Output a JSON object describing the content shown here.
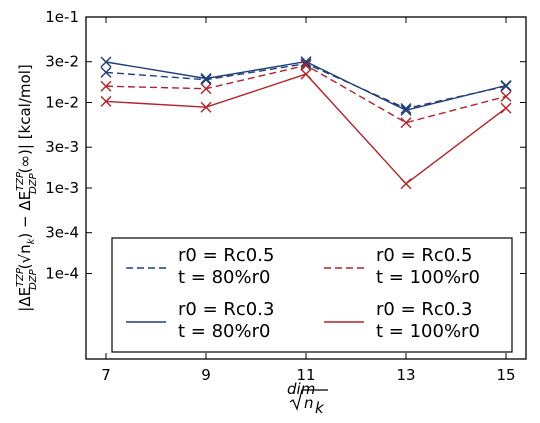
{
  "chart_data": {
    "type": "line",
    "xlabel": {
      "dim": "dim",
      "radicand": "n",
      "sub": "k"
    },
    "ylabel": {
      "prefix": "|ΔE",
      "sup1": "TZP",
      "sup1b": "dim",
      "sub1": "DZP",
      "mid": "(√n",
      "sub2": "k",
      "mid2": ") − ΔE",
      "sup3": "TZP",
      "sub3": "DZP",
      "tail": "(∞)| [kcal/mol]"
    },
    "yscale": "log",
    "xlim": [
      6.6,
      15.4
    ],
    "ylim": [
      1e-05,
      0.1
    ],
    "xticks": [
      7,
      9,
      11,
      13,
      15
    ],
    "xtick_labels": [
      "7",
      "9",
      "11",
      "13",
      "15"
    ],
    "yticks": [
      0.1,
      0.03,
      0.01,
      0.003,
      0.001,
      0.0003,
      0.0001
    ],
    "ytick_labels": [
      "1e-1",
      "3e-2",
      "1e-2",
      "3e-3",
      "1e-3",
      "3e-4",
      "1e-4"
    ],
    "grid": false,
    "legend_placement": "lower center",
    "x": [
      7,
      9,
      11,
      13,
      15
    ],
    "series": [
      {
        "legend_line1": "r0 = Rc0.5",
        "legend_line2": "t = 80%r0",
        "values": [
          0.0225,
          0.0185,
          0.0285,
          0.0085,
          0.0155
        ],
        "color": "#1f3f7a",
        "dash": "dashed",
        "marker": "x"
      },
      {
        "legend_line1": "r0 = Rc0.3",
        "legend_line2": "t = 80%r0",
        "values": [
          0.0298,
          0.0191,
          0.0301,
          0.0081,
          0.0158
        ],
        "color": "#1f3f7a",
        "dash": "solid",
        "marker": "x"
      },
      {
        "legend_line1": "r0 = Rc0.5",
        "legend_line2": "t = 100%r0",
        "values": [
          0.0155,
          0.0145,
          0.0272,
          0.0058,
          0.0118
        ],
        "color": "#b0242a",
        "dash": "dashed",
        "marker": "x"
      },
      {
        "legend_line1": "r0 = Rc0.3",
        "legend_line2": "t = 100%r0",
        "values": [
          0.0103,
          0.0088,
          0.0215,
          0.00112,
          0.0086
        ],
        "color": "#b0242a",
        "dash": "solid",
        "marker": "x"
      }
    ]
  }
}
